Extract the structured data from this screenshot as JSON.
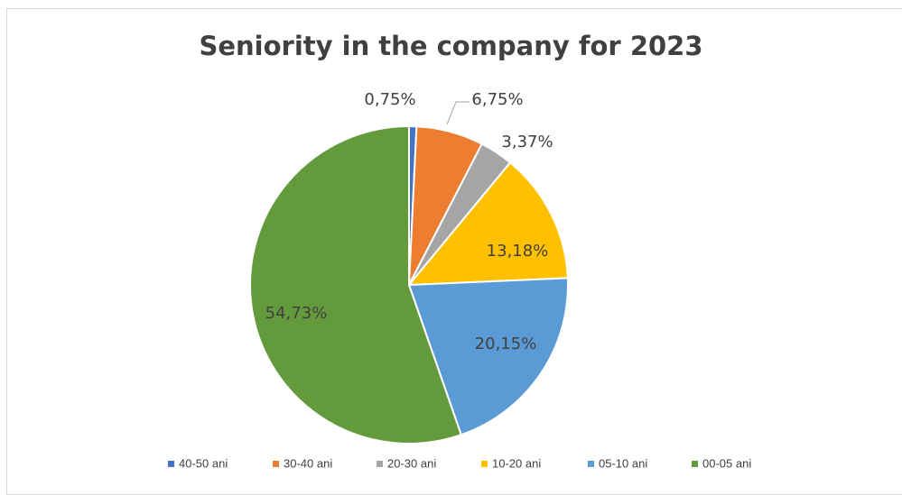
{
  "chart_data": {
    "type": "pie",
    "title": "Seniority in the company for 2023",
    "categories": [
      "40-50 ani",
      "30-40 ani",
      "20-30 ani",
      "10-20 ani",
      "05-10 ani",
      "00-05 ani"
    ],
    "values": [
      0.75,
      6.75,
      3.37,
      13.18,
      20.15,
      54.73
    ],
    "data_labels": [
      "0,75%",
      "6,75%",
      "3,37%",
      "13,18%",
      "20,15%",
      "54,73%"
    ],
    "colors": [
      "#4472C4",
      "#ED7D31",
      "#A5A5A5",
      "#FFC000",
      "#5B9BD5",
      "#639A3C"
    ],
    "legend_position": "bottom",
    "start_angle": "top, clockwise"
  }
}
